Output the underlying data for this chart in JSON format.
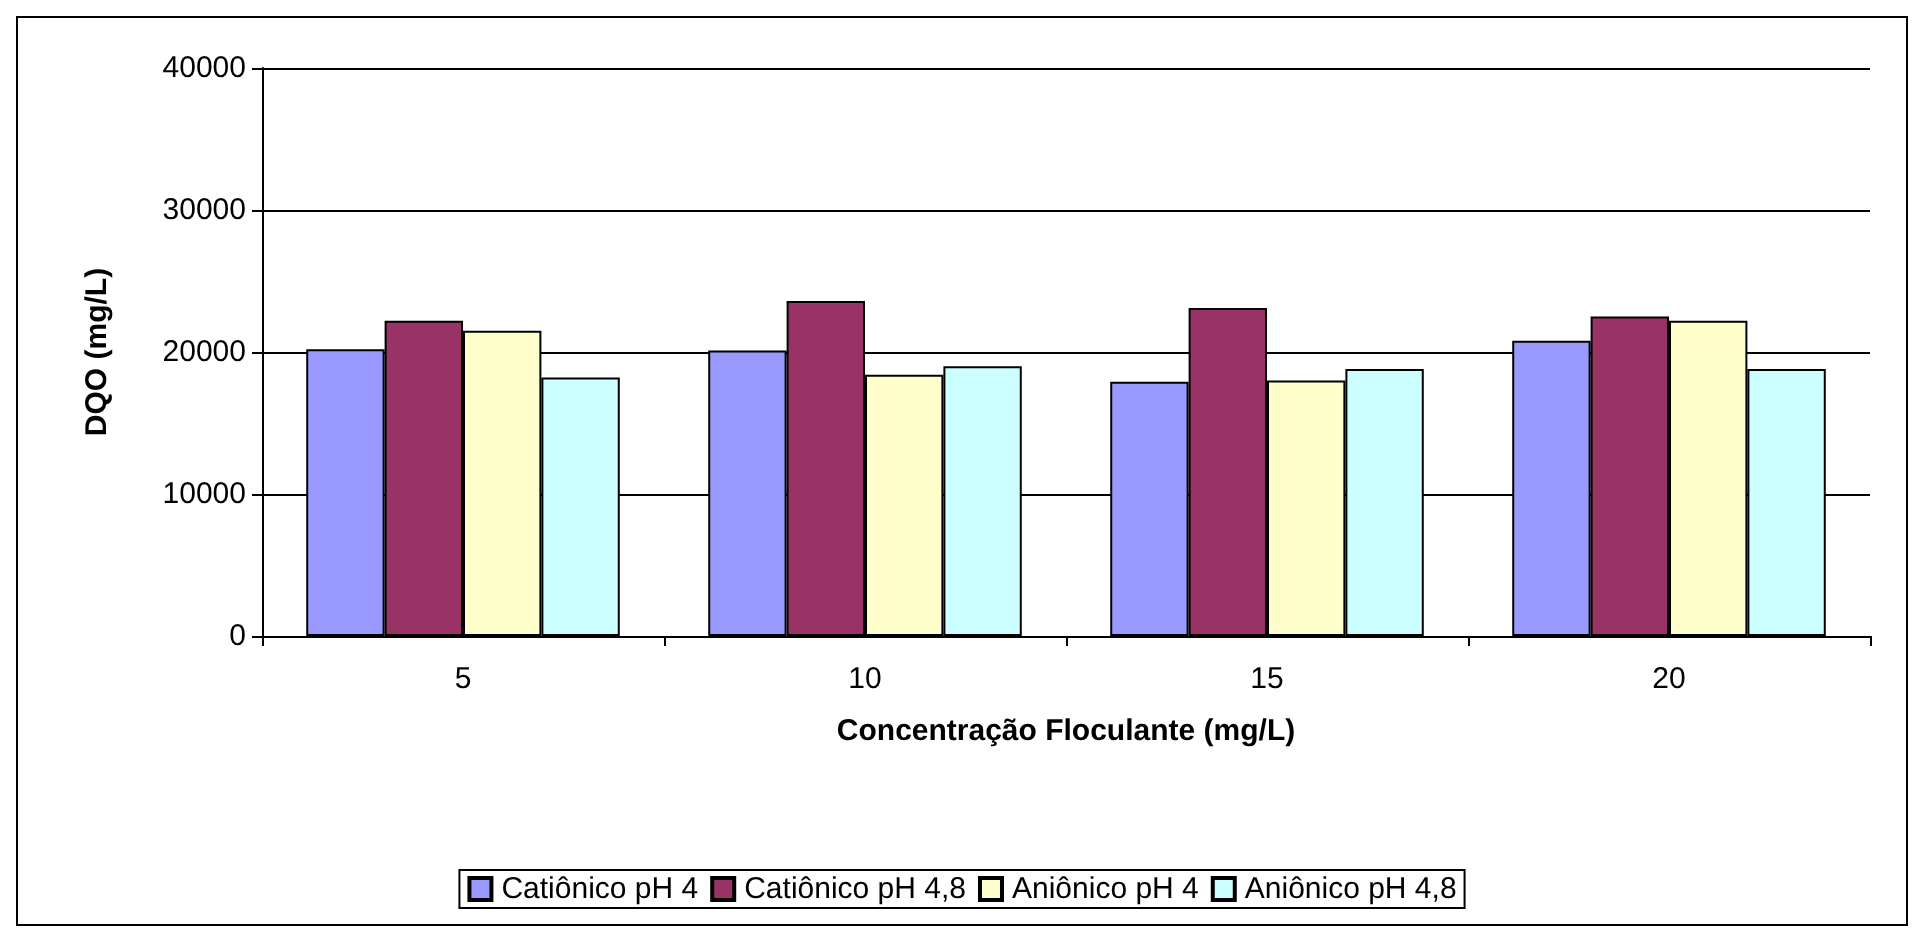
{
  "chart_data": {
    "type": "bar",
    "xlabel": "Concentração Floculante (mg/L)",
    "ylabel": "DQO (mg/L)",
    "categories": [
      "5",
      "10",
      "15",
      "20"
    ],
    "series": [
      {
        "name": "Catiônico pH 4",
        "color": "#9999ff",
        "values": [
          20200,
          20100,
          17900,
          20800
        ]
      },
      {
        "name": "Catiônico pH 4,8",
        "color": "#993366",
        "values": [
          22200,
          23600,
          23100,
          22500
        ]
      },
      {
        "name": "Aniônico pH 4",
        "color": "#ffffcc",
        "values": [
          21500,
          18400,
          18000,
          22200
        ]
      },
      {
        "name": "Aniônico pH 4,8",
        "color": "#ccffff",
        "values": [
          18200,
          19000,
          18800,
          18800
        ]
      }
    ],
    "ylim": [
      0,
      40000
    ],
    "yticks": [
      0,
      10000,
      20000,
      30000,
      40000
    ],
    "grid": "y",
    "legend": "bottom"
  }
}
